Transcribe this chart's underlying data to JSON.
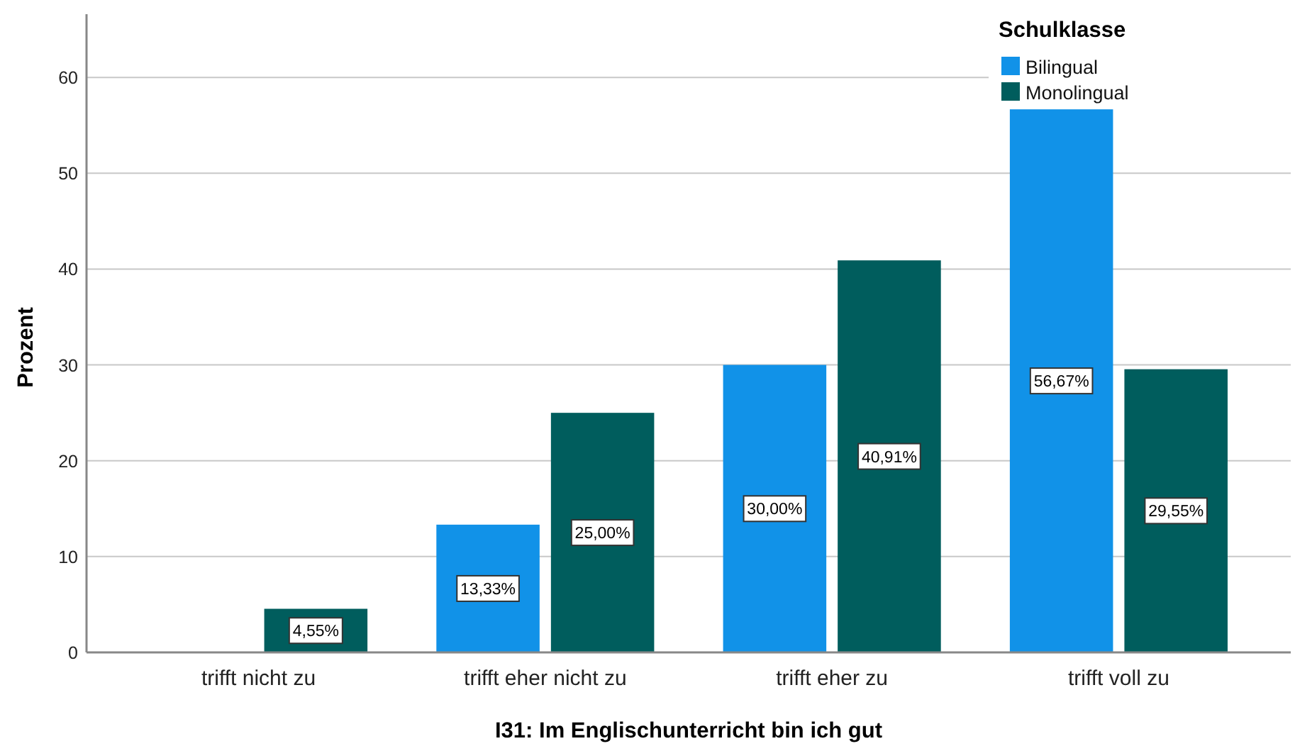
{
  "chart_data": {
    "type": "bar",
    "xlabel": "I31: Im Englischunterricht bin ich gut",
    "ylabel": "Prozent",
    "legend_title": "Schulklasse",
    "categories": [
      "trifft nicht zu",
      "trifft eher nicht zu",
      "trifft eher zu",
      "trifft voll zu"
    ],
    "series": [
      {
        "name": "Bilingual",
        "color": "#1192e8",
        "values": [
          null,
          13.33,
          30.0,
          56.67
        ],
        "value_labels": [
          null,
          "13,33%",
          "30,00%",
          "56,67%"
        ]
      },
      {
        "name": "Monolingual",
        "color": "#005d5d",
        "values": [
          4.55,
          25.0,
          40.91,
          29.55
        ],
        "value_labels": [
          "4,55%",
          "25,00%",
          "40,91%",
          "29,55%"
        ]
      }
    ],
    "ylim": [
      0,
      66.6
    ],
    "yticks": [
      0,
      10,
      20,
      30,
      40,
      50,
      60
    ],
    "grid": "y",
    "legend": "top right"
  }
}
